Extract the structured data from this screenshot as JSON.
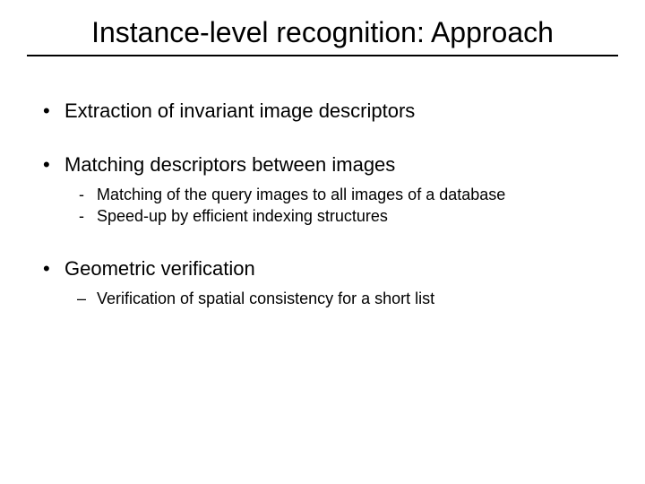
{
  "slide": {
    "title": "Instance-level recognition: Approach",
    "title_fontsize": 32,
    "title_rule_color": "#000000",
    "background_color": "#ffffff",
    "text_color": "#000000",
    "bullets": [
      {
        "text": "Extraction of invariant image descriptors",
        "sub": []
      },
      {
        "text": "Matching descriptors between images",
        "sub": [
          {
            "marker": "dash",
            "text": "Matching of the query images to all images of a database"
          },
          {
            "marker": "dash",
            "text": "Speed-up by efficient indexing structures"
          }
        ]
      },
      {
        "text": "Geometric verification",
        "sub": [
          {
            "marker": "endash",
            "text": "Verification of spatial consistency for a short list"
          }
        ]
      }
    ],
    "level1_fontsize": 22,
    "level2_fontsize": 18
  }
}
